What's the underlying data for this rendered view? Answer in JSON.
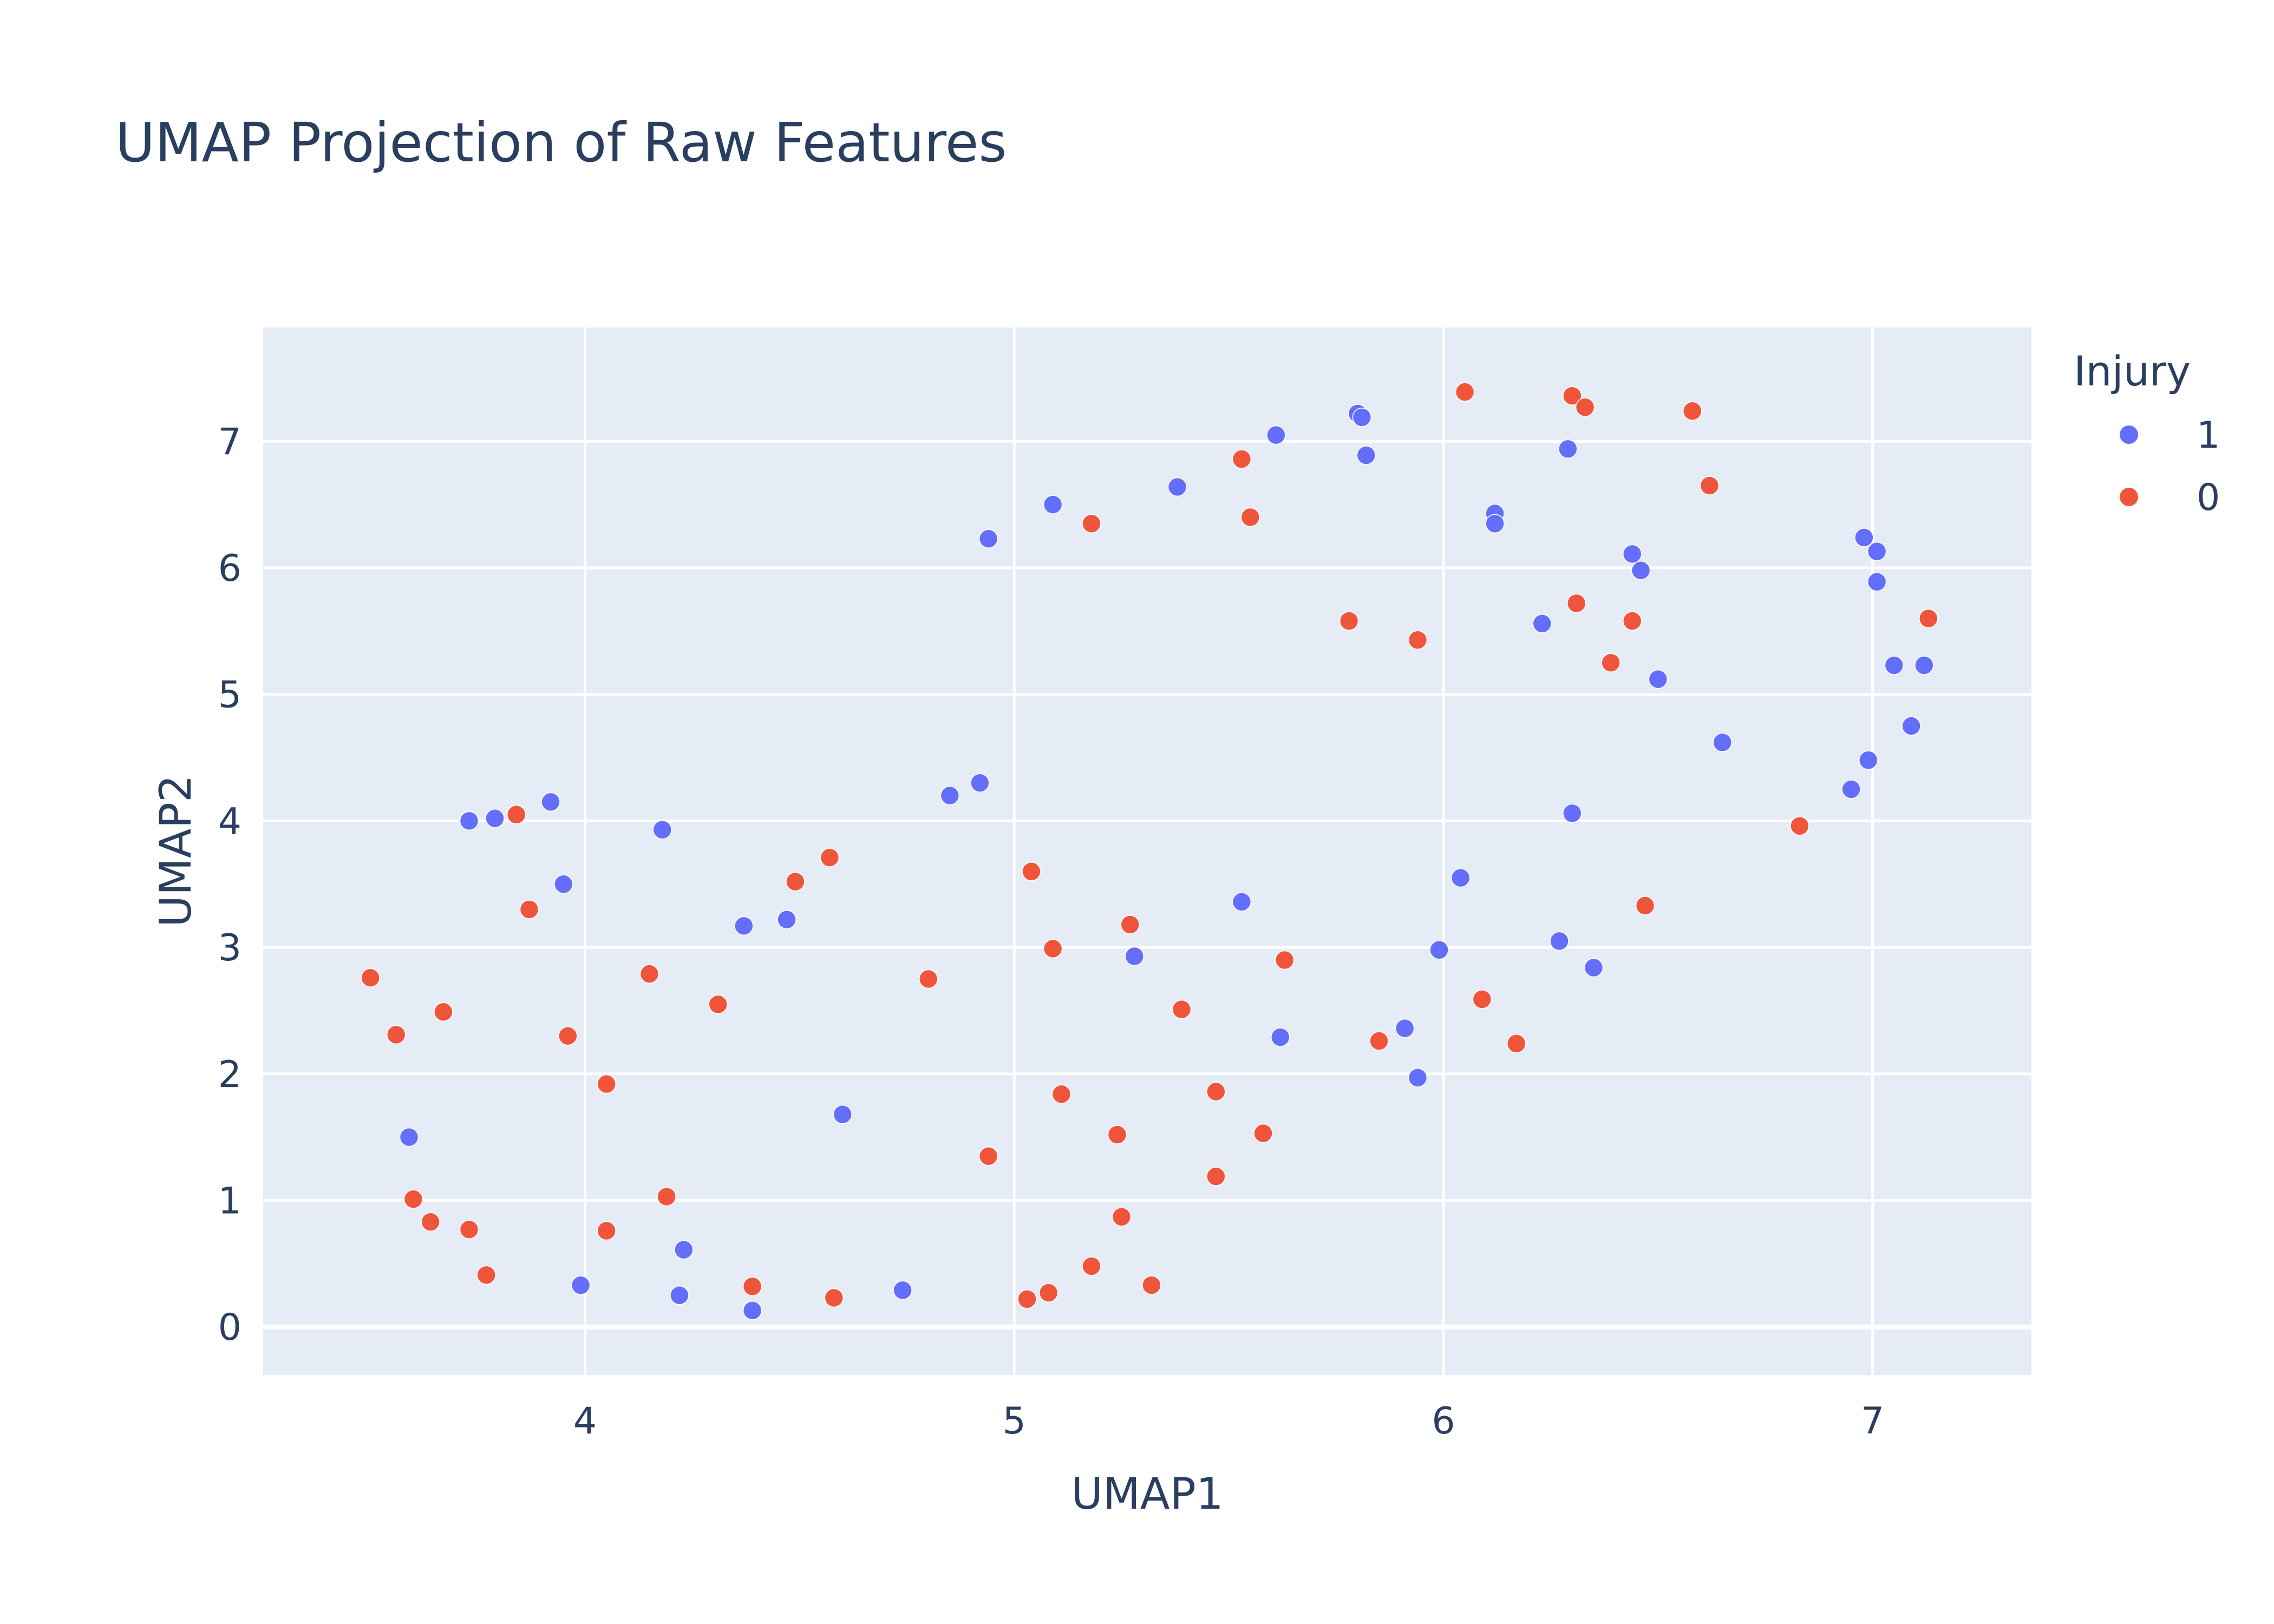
{
  "chart_data": {
    "type": "scatter",
    "title": "UMAP Projection of Raw Features",
    "xlabel": "UMAP1",
    "ylabel": "UMAP2",
    "xlim": [
      3.25,
      7.37
    ],
    "ylim": [
      -0.38,
      7.9
    ],
    "x_ticks": [
      4,
      5,
      6,
      7
    ],
    "x_tick_labels": [
      "4",
      "5",
      "6",
      "7"
    ],
    "y_ticks": [
      0,
      1,
      2,
      3,
      4,
      5,
      6,
      7
    ],
    "y_tick_labels": [
      "0",
      "1",
      "2",
      "3",
      "4",
      "5",
      "6",
      "7"
    ],
    "grid": true,
    "plot_background": "#e5ecf6",
    "legend_title": "Injury",
    "legend_position": "right",
    "series": [
      {
        "name": "1",
        "color": "#636efa",
        "points": [
          [
            3.59,
            1.5
          ],
          [
            3.73,
            4.0
          ],
          [
            3.79,
            4.02
          ],
          [
            3.92,
            4.15
          ],
          [
            3.95,
            3.5
          ],
          [
            3.99,
            0.33
          ],
          [
            4.18,
            3.93
          ],
          [
            4.22,
            0.25
          ],
          [
            4.23,
            0.61
          ],
          [
            4.37,
            3.17
          ],
          [
            4.39,
            0.13
          ],
          [
            4.47,
            3.22
          ],
          [
            4.6,
            1.68
          ],
          [
            4.74,
            0.29
          ],
          [
            4.85,
            4.2
          ],
          [
            4.92,
            4.3
          ],
          [
            4.94,
            6.23
          ],
          [
            5.09,
            6.5
          ],
          [
            5.28,
            2.93
          ],
          [
            5.38,
            6.64
          ],
          [
            5.53,
            3.36
          ],
          [
            5.61,
            7.05
          ],
          [
            5.62,
            2.29
          ],
          [
            5.8,
            7.22
          ],
          [
            5.81,
            7.19
          ],
          [
            5.82,
            6.89
          ],
          [
            5.91,
            2.36
          ],
          [
            5.94,
            1.97
          ],
          [
            5.99,
            2.98
          ],
          [
            6.04,
            3.55
          ],
          [
            6.12,
            6.43
          ],
          [
            6.12,
            6.35
          ],
          [
            6.23,
            5.56
          ],
          [
            6.27,
            3.05
          ],
          [
            6.29,
            6.94
          ],
          [
            6.3,
            4.06
          ],
          [
            6.35,
            2.84
          ],
          [
            6.44,
            6.11
          ],
          [
            6.46,
            5.98
          ],
          [
            6.5,
            5.12
          ],
          [
            6.65,
            4.62
          ],
          [
            6.95,
            4.25
          ],
          [
            6.98,
            6.24
          ],
          [
            6.99,
            4.48
          ],
          [
            7.01,
            6.13
          ],
          [
            7.01,
            5.89
          ],
          [
            7.05,
            5.23
          ],
          [
            7.09,
            4.75
          ],
          [
            7.12,
            5.23
          ]
        ]
      },
      {
        "name": "0",
        "color": "#ef553b",
        "points": [
          [
            3.5,
            2.76
          ],
          [
            3.56,
            2.31
          ],
          [
            3.6,
            1.01
          ],
          [
            3.64,
            0.83
          ],
          [
            3.67,
            2.49
          ],
          [
            3.73,
            0.77
          ],
          [
            3.77,
            0.41
          ],
          [
            3.84,
            4.05
          ],
          [
            3.87,
            3.3
          ],
          [
            3.96,
            2.3
          ],
          [
            4.05,
            1.92
          ],
          [
            4.05,
            0.76
          ],
          [
            4.15,
            2.79
          ],
          [
            4.19,
            1.03
          ],
          [
            4.31,
            2.55
          ],
          [
            4.39,
            0.32
          ],
          [
            4.49,
            3.52
          ],
          [
            4.57,
            3.71
          ],
          [
            4.58,
            0.23
          ],
          [
            4.8,
            2.75
          ],
          [
            4.94,
            1.35
          ],
          [
            5.03,
            0.22
          ],
          [
            5.04,
            3.6
          ],
          [
            5.08,
            0.27
          ],
          [
            5.09,
            2.99
          ],
          [
            5.11,
            1.84
          ],
          [
            5.18,
            6.35
          ],
          [
            5.18,
            0.48
          ],
          [
            5.24,
            1.52
          ],
          [
            5.25,
            0.87
          ],
          [
            5.27,
            3.18
          ],
          [
            5.32,
            0.33
          ],
          [
            5.39,
            2.51
          ],
          [
            5.47,
            1.86
          ],
          [
            5.47,
            1.19
          ],
          [
            5.53,
            6.86
          ],
          [
            5.55,
            6.4
          ],
          [
            5.58,
            1.53
          ],
          [
            5.63,
            2.9
          ],
          [
            5.78,
            5.58
          ],
          [
            5.85,
            2.26
          ],
          [
            5.94,
            5.43
          ],
          [
            6.05,
            7.39
          ],
          [
            6.09,
            2.59
          ],
          [
            6.17,
            2.24
          ],
          [
            6.3,
            7.36
          ],
          [
            6.31,
            5.72
          ],
          [
            6.33,
            7.27
          ],
          [
            6.39,
            5.25
          ],
          [
            6.44,
            5.58
          ],
          [
            6.47,
            3.33
          ],
          [
            6.58,
            7.24
          ],
          [
            6.62,
            6.65
          ],
          [
            6.83,
            3.96
          ],
          [
            7.13,
            5.6
          ]
        ]
      }
    ]
  }
}
